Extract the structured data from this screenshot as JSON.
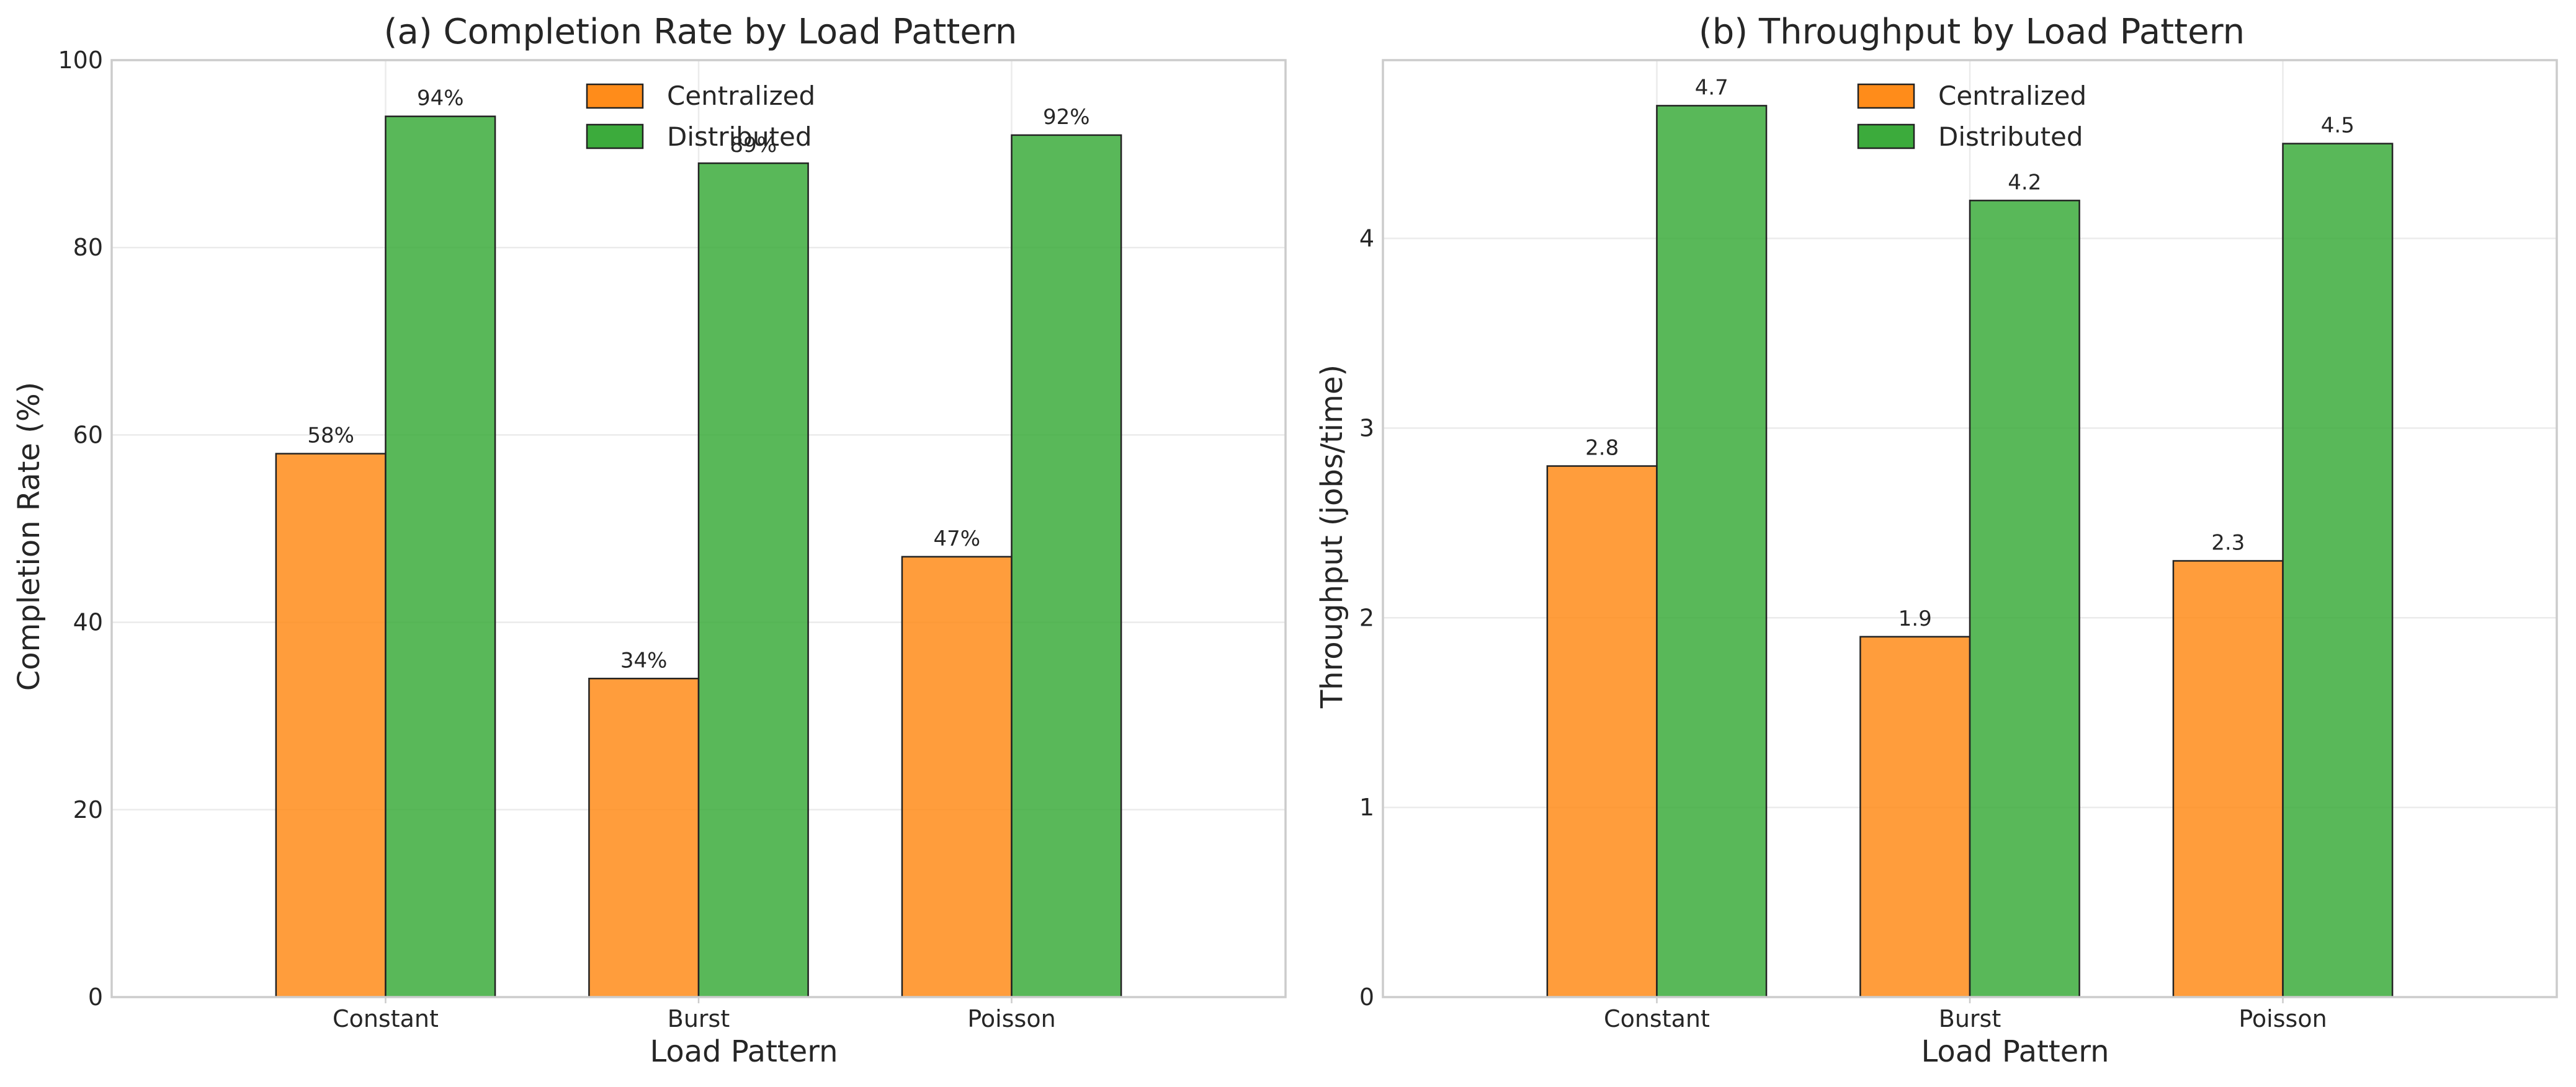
{
  "colors": {
    "centralized": "#ff8c1a",
    "distributed": "#3cab3c"
  },
  "chart_data": [
    {
      "type": "bar",
      "title": "(a) Completion Rate by Load Pattern",
      "xlabel": "Load Pattern",
      "ylabel": "Completion Rate (%)",
      "categories": [
        "Constant",
        "Burst",
        "Poisson"
      ],
      "ylim": [
        0,
        100
      ],
      "yticks": [
        0,
        20,
        40,
        60,
        80,
        100
      ],
      "grid": true,
      "legend_position": "top-center",
      "series": [
        {
          "name": "Centralized",
          "values": [
            58,
            34,
            47
          ],
          "labels": [
            "58%",
            "34%",
            "47%"
          ]
        },
        {
          "name": "Distributed",
          "values": [
            94,
            89,
            92
          ],
          "labels": [
            "94%",
            "89%",
            "92%"
          ]
        }
      ]
    },
    {
      "type": "bar",
      "title": "(b) Throughput by Load Pattern",
      "xlabel": "Load Pattern",
      "ylabel": "Throughput (jobs/time)",
      "categories": [
        "Constant",
        "Burst",
        "Poisson"
      ],
      "ylim": [
        0,
        4.94
      ],
      "yticks": [
        0,
        1,
        2,
        3,
        4
      ],
      "grid": true,
      "legend_position": "top-center",
      "series": [
        {
          "name": "Centralized",
          "values": [
            2.8,
            1.9,
            2.3
          ],
          "labels": [
            "2.8",
            "1.9",
            "2.3"
          ]
        },
        {
          "name": "Distributed",
          "values": [
            4.7,
            4.2,
            4.5
          ],
          "labels": [
            "4.7",
            "4.2",
            "4.5"
          ]
        }
      ]
    }
  ]
}
